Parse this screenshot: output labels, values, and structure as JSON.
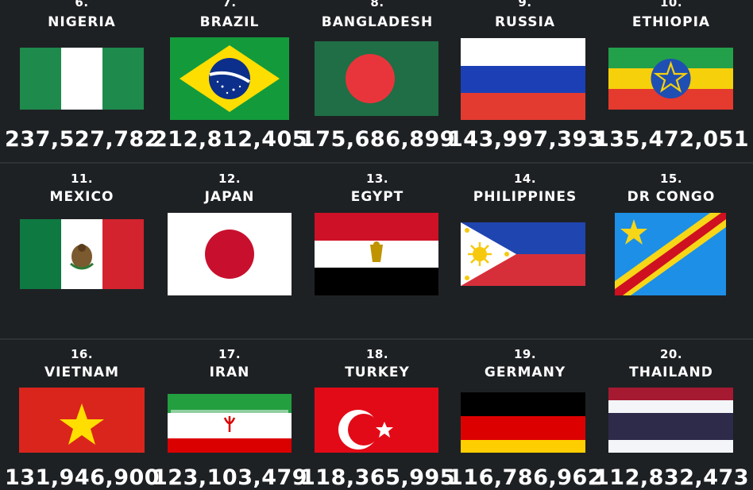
{
  "rows": [
    [
      {
        "rank": "6.",
        "name": "NIGERIA",
        "population": "237,527,782",
        "flag": "nigeria-flag"
      },
      {
        "rank": "7.",
        "name": "BRAZIL",
        "population": "212,812,405",
        "flag": "brazil-flag"
      },
      {
        "rank": "8.",
        "name": "BANGLADESH",
        "population": "175,686,899",
        "flag": "bangladesh-flag"
      },
      {
        "rank": "9.",
        "name": "RUSSIA",
        "population": "143,997,393",
        "flag": "russia-flag"
      },
      {
        "rank": "10.",
        "name": "ETHIOPIA",
        "population": "135,472,051",
        "flag": "ethiopia-flag"
      }
    ],
    [
      {
        "rank": "11.",
        "name": "MEXICO",
        "population": "131,946,900",
        "flag": "mexico-flag"
      },
      {
        "rank": "12.",
        "name": "JAPAN",
        "population": "123,103,479",
        "flag": "japan-flag"
      },
      {
        "rank": "13.",
        "name": "EGYPT",
        "population": "118,365,995",
        "flag": "egypt-flag"
      },
      {
        "rank": "14.",
        "name": "PHILIPPINES",
        "population": "116,786,962",
        "flag": "philippines-flag"
      },
      {
        "rank": "15.",
        "name": "DR CONGO",
        "population": "112,832,473",
        "flag": "dr-congo-flag"
      }
    ],
    [
      {
        "rank": "16.",
        "name": "VIETNAM",
        "flag": "vietnam-flag"
      },
      {
        "rank": "17.",
        "name": "IRAN",
        "flag": "iran-flag"
      },
      {
        "rank": "18.",
        "name": "TURKEY",
        "flag": "turkey-flag"
      },
      {
        "rank": "19.",
        "name": "GERMANY",
        "flag": "germany-flag"
      },
      {
        "rank": "20.",
        "name": "THAILAND",
        "flag": "thailand-flag"
      }
    ]
  ],
  "colors": {
    "background": "#1e2124",
    "text": "#ffffff",
    "divider": "#2e3236"
  }
}
